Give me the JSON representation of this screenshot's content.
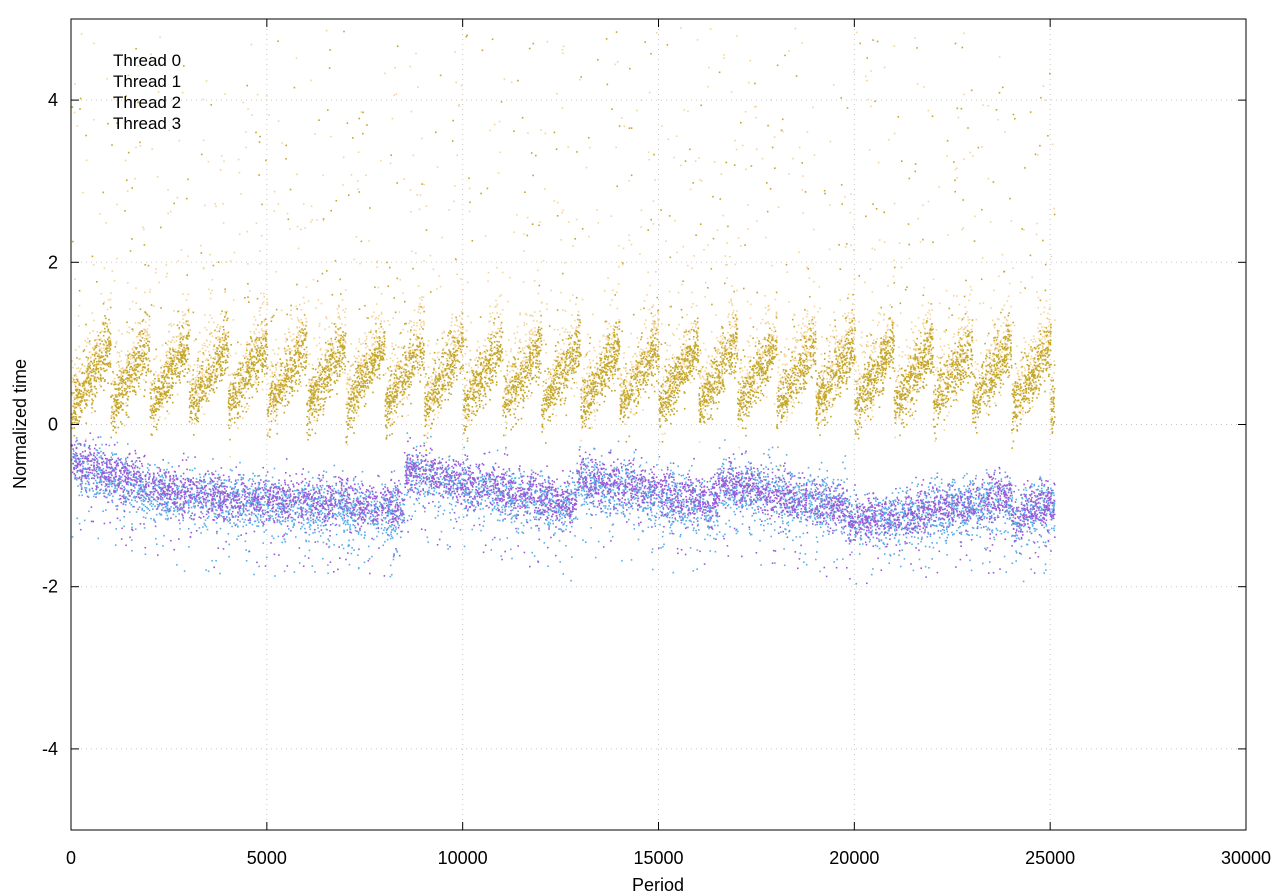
{
  "chart_data": {
    "type": "scatter",
    "title": "",
    "xlabel": "Period",
    "ylabel": "Normalized time",
    "xlim": [
      0,
      30000
    ],
    "ylim": [
      -5,
      5
    ],
    "xticks": [
      0,
      5000,
      10000,
      15000,
      20000,
      25000,
      30000
    ],
    "yticks": [
      -4,
      -2,
      0,
      2,
      4
    ],
    "xtick_labels": [
      "0",
      "5000",
      "10000",
      "15000",
      "20000",
      "25000",
      "30000"
    ],
    "ytick_labels": [
      "-4",
      "-2",
      "0",
      "2",
      "4"
    ],
    "grid": true,
    "legend_position": "top-left",
    "x_extent": [
      0,
      25100
    ],
    "series": [
      {
        "name": "Thread 0",
        "color": "#9b59d8",
        "description_values": {
          "x_range": [
            0,
            25100
          ],
          "typical_y_range": [
            -1.5,
            0.2
          ],
          "segment_breaks": [
            2900,
            8500,
            12900,
            16500,
            19800,
            24000
          ],
          "segment_start_means": [
            -0.45,
            -0.85,
            -0.55,
            -0.65,
            -0.7,
            -1.2
          ],
          "segment_end_means": [
            -0.85,
            -1.0,
            -1.0,
            -0.95,
            -1.05,
            -0.9
          ]
        }
      },
      {
        "name": "Thread 1",
        "color": "#5aaee8",
        "description_values": {
          "x_range": [
            0,
            25100
          ],
          "typical_y_range": [
            -1.7,
            0.0
          ],
          "segment_breaks": [
            2900,
            8500,
            12900,
            16500,
            19800,
            24000
          ],
          "segment_start_means": [
            -0.5,
            -0.9,
            -0.6,
            -0.7,
            -0.75,
            -1.2
          ],
          "segment_end_means": [
            -0.95,
            -1.1,
            -1.05,
            -1.05,
            -1.0,
            -0.95
          ]
        }
      },
      {
        "name": "Thread 2",
        "color": "#c4a72a",
        "description_values": {
          "x_range": [
            0,
            25100
          ],
          "sawtooth_period": 1000,
          "sawtooth_low": 0.2,
          "sawtooth_high": 1.0,
          "outlier_max": 4.9
        }
      },
      {
        "name": "Thread 3",
        "color": "#f0c77a",
        "description_values": {
          "x_range": [
            0,
            25100
          ],
          "sawtooth_period": 1000,
          "sawtooth_low": 0.3,
          "sawtooth_high": 1.2,
          "outlier_max": 4.9
        }
      }
    ]
  }
}
